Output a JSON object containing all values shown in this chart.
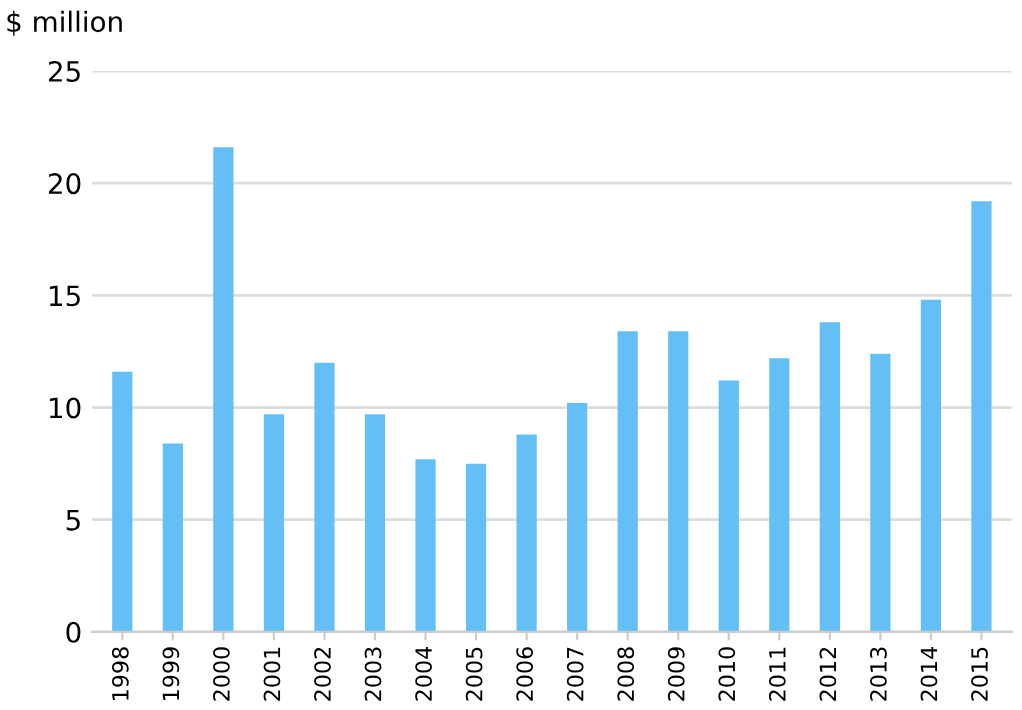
{
  "chart_data": {
    "type": "bar",
    "ylabel": "$ million",
    "categories": [
      "1998",
      "1999",
      "2000",
      "2001",
      "2002",
      "2003",
      "2004",
      "2005",
      "2006",
      "2007",
      "2008",
      "2009",
      "2010",
      "2011",
      "2012",
      "2013",
      "2014",
      "2015"
    ],
    "values": [
      11.6,
      8.4,
      21.6,
      9.7,
      12.0,
      9.7,
      7.7,
      7.5,
      8.8,
      10.2,
      13.4,
      13.4,
      11.2,
      12.2,
      13.8,
      12.4,
      14.8,
      19.2
    ],
    "color": "#63bff5",
    "ylim": [
      0,
      25
    ],
    "yticks": [
      0,
      5,
      10,
      15,
      20,
      25
    ],
    "grid": "y"
  }
}
